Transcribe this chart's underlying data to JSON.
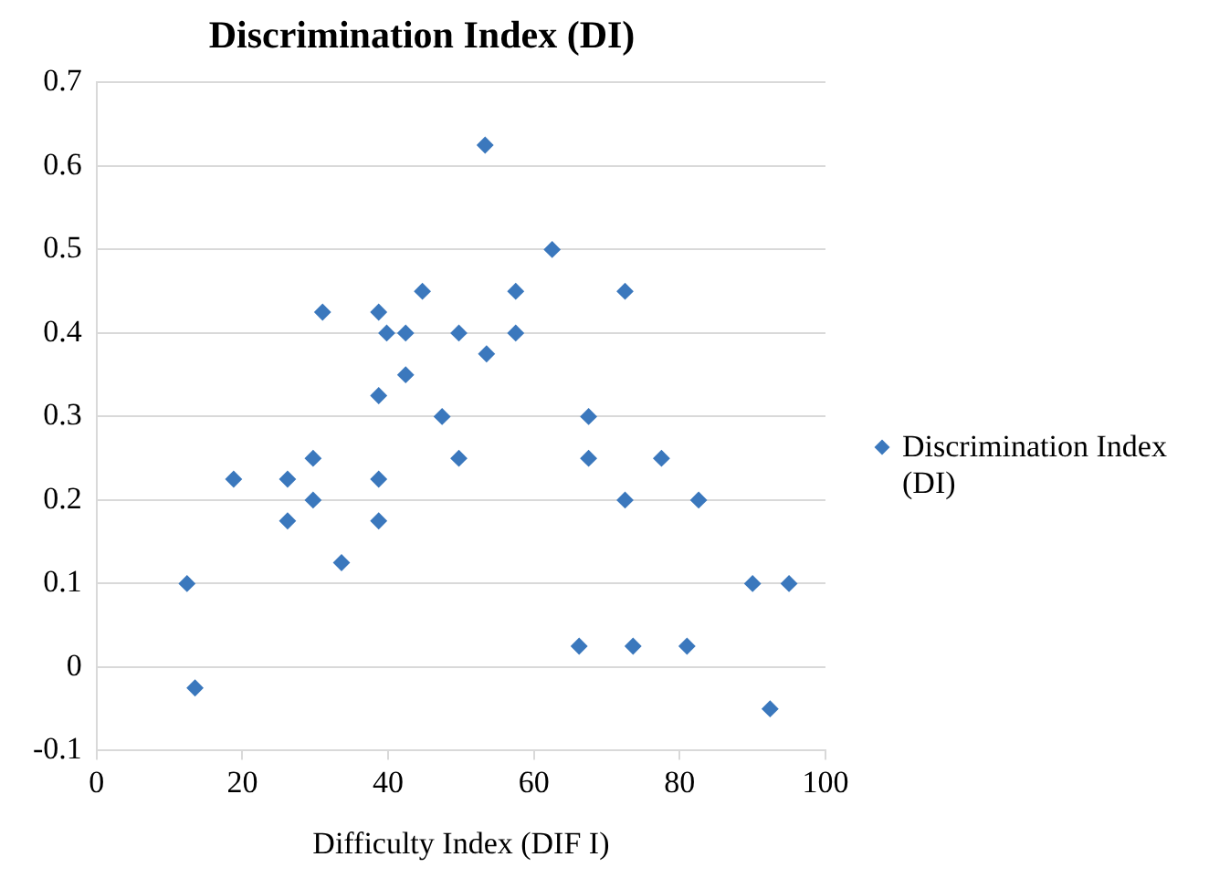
{
  "chart_data": {
    "type": "scatter",
    "title": "Discrimination Index (DI)",
    "xlabel": "Difficulty Index (DIF I)",
    "xlim": [
      0,
      100
    ],
    "xticks": [
      0,
      20,
      40,
      60,
      80,
      100
    ],
    "ylim": [
      -0.1,
      0.7
    ],
    "yticks": [
      -0.1,
      0,
      0.1,
      0.2,
      0.3,
      0.4,
      0.5,
      0.6,
      0.7
    ],
    "grid": "y",
    "legend": "right",
    "marker": "diamond",
    "series": [
      {
        "name": "Discrimination Index (DI)",
        "color": "#3b78bd",
        "x": [
          12.4,
          13.5,
          18.8,
          26.2,
          26.2,
          29.7,
          29.7,
          33.6,
          38.7,
          38.7,
          38.7,
          47.4,
          49.7,
          31,
          38.7,
          39.8,
          42.4,
          44.7,
          42.4,
          49.7,
          53.3,
          53.5,
          57.5,
          57.5,
          62.5,
          72.5,
          67.5,
          67.5,
          77.5,
          72.5,
          82.6,
          90,
          95,
          66.2,
          73.6,
          81,
          92.4
        ],
        "values": [
          0.1,
          -0.025,
          0.225,
          0.225,
          0.175,
          0.25,
          0.2,
          0.125,
          0.225,
          0.175,
          0.325,
          0.3,
          0.25,
          0.425,
          0.425,
          0.4,
          0.4,
          0.45,
          0.35,
          0.4,
          0.625,
          0.375,
          0.4,
          0.45,
          0.5,
          0.45,
          0.3,
          0.25,
          0.25,
          0.2,
          0.2,
          0.1,
          0.1,
          0.025,
          0.025,
          0.025,
          -0.05
        ]
      }
    ]
  }
}
